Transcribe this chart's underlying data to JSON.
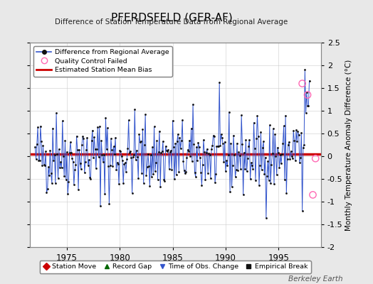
{
  "title": "PFERDSFELD (GER-AF)",
  "subtitle": "Difference of Station Temperature Data from Regional Average",
  "ylabel": "Monthly Temperature Anomaly Difference (°C)",
  "ylim": [
    -2.0,
    2.5
  ],
  "xlim": [
    1971.5,
    1999.0
  ],
  "bias_value": 0.05,
  "bias_color": "#cc0000",
  "line_color": "#3355cc",
  "dot_color": "#111111",
  "qc_color": "#ff69b4",
  "background_color": "#e8e8e8",
  "plot_bg_color": "#ffffff",
  "grid_color": "#cccccc",
  "yticks": [
    -2.0,
    -1.5,
    -1.0,
    -0.5,
    0.0,
    0.5,
    1.0,
    1.5,
    2.0,
    2.5
  ],
  "xticks": [
    1975,
    1980,
    1985,
    1990,
    1995
  ],
  "seed": 42,
  "n_months": 312,
  "start_year": 1972.0,
  "qc_failed_times": [
    1997.25,
    1997.75,
    1998.25,
    1998.5
  ],
  "qc_failed_values": [
    1.6,
    1.35,
    -0.85,
    -0.05
  ],
  "berkeley_earth_text": "Berkeley Earth"
}
